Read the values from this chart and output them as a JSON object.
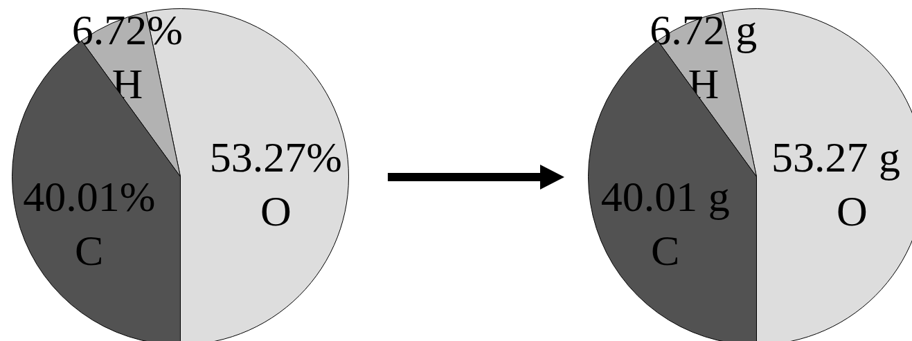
{
  "chart_data": [
    {
      "type": "pie",
      "categories": [
        "O",
        "H",
        "C"
      ],
      "values": [
        53.27,
        6.72,
        40.01
      ],
      "colors": [
        "#dddddd",
        "#b2b2b2",
        "#525252"
      ],
      "value_labels": [
        "53.27%",
        "6.72%",
        "40.01%"
      ]
    },
    {
      "type": "pie",
      "categories": [
        "O",
        "H",
        "C"
      ],
      "values": [
        53.27,
        6.72,
        40.01
      ],
      "colors": [
        "#dddddd",
        "#b2b2b2",
        "#525252"
      ],
      "value_labels": [
        "53.27 g",
        "6.72 g",
        "40.01 g"
      ]
    }
  ]
}
